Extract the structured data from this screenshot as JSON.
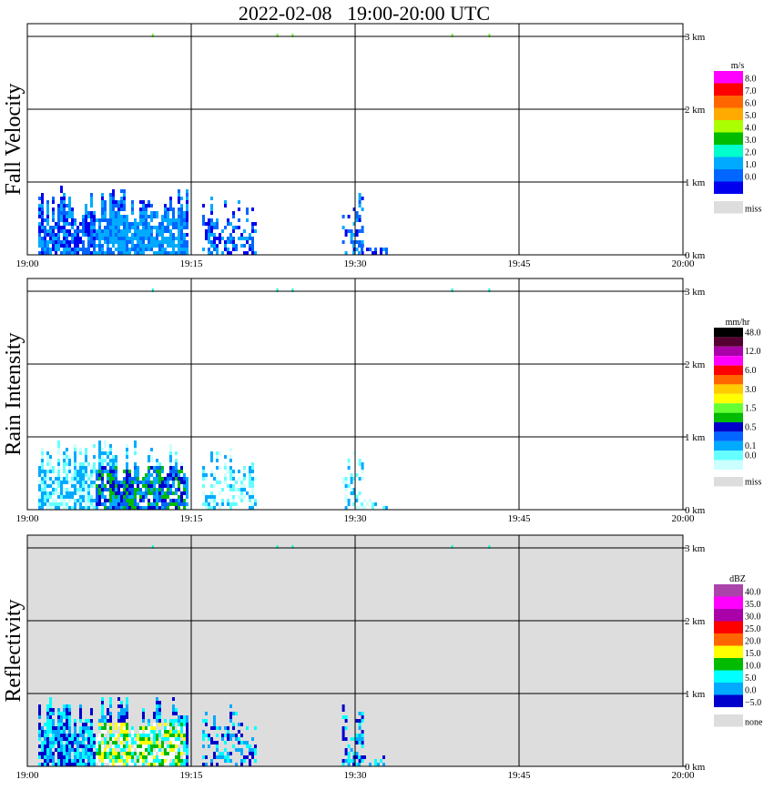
{
  "title": "2022-02-08   19:00-20:00 UTC",
  "chart_data": [
    {
      "type": "heatmap",
      "title": "Fall Velocity",
      "ylabel": "Fall Velocity",
      "x_ticks": [
        "19:00",
        "19:15",
        "19:30",
        "19:45",
        "20:00"
      ],
      "y_ticks": [
        "0 km",
        "1 km",
        "2 km",
        "3 km"
      ],
      "xlim": [
        "19:00",
        "20:00"
      ],
      "ylim_km": [
        0,
        3.2
      ],
      "grid": true,
      "legend": {
        "unit": "m/s",
        "entries": [
          {
            "label": "8.0",
            "color": "#ff00ff"
          },
          {
            "label": "7.0",
            "color": "#ff0000"
          },
          {
            "label": "6.0",
            "color": "#ff6600"
          },
          {
            "label": "5.0",
            "color": "#ffaa00"
          },
          {
            "label": "4.0",
            "color": "#aaff00"
          },
          {
            "label": "3.0",
            "color": "#00bb00"
          },
          {
            "label": "2.0",
            "color": "#00ffcc"
          },
          {
            "label": "1.0",
            "color": "#00aaff"
          },
          {
            "label": "0.0",
            "color": "#0066ff"
          },
          {
            "label": "",
            "color": "#0000ee"
          },
          {
            "label": "miss",
            "color": "#dddddd"
          }
        ]
      },
      "background": "#ffffff"
    },
    {
      "type": "heatmap",
      "title": "Rain Intensity",
      "ylabel": "Rain Intensity",
      "x_ticks": [
        "19:00",
        "19:15",
        "19:30",
        "19:45",
        "20:00"
      ],
      "y_ticks": [
        "0 km",
        "1 km",
        "2 km",
        "3 km"
      ],
      "xlim": [
        "19:00",
        "20:00"
      ],
      "ylim_km": [
        0,
        3.2
      ],
      "grid": true,
      "legend": {
        "unit": "mm/hr",
        "entries": [
          {
            "label": "48.0",
            "color": "#000000"
          },
          {
            "label": "",
            "color": "#550033"
          },
          {
            "label": "12.0",
            "color": "#aa00aa"
          },
          {
            "label": "",
            "color": "#ff00ff"
          },
          {
            "label": "6.0",
            "color": "#ff0000"
          },
          {
            "label": "",
            "color": "#ff6600"
          },
          {
            "label": "3.0",
            "color": "#ffcc00"
          },
          {
            "label": "",
            "color": "#ffff00"
          },
          {
            "label": "1.5",
            "color": "#66ff33"
          },
          {
            "label": "",
            "color": "#00bb00"
          },
          {
            "label": "0.5",
            "color": "#0000cc"
          },
          {
            "label": "",
            "color": "#0066ff"
          },
          {
            "label": "0.1",
            "color": "#00aaff"
          },
          {
            "label": "0.0",
            "color": "#66ffff"
          },
          {
            "label": "",
            "color": "#ccffff"
          },
          {
            "label": "miss",
            "color": "#dddddd"
          }
        ]
      },
      "background": "#ffffff"
    },
    {
      "type": "heatmap",
      "title": "Reflectivity",
      "ylabel": "Reflectivity",
      "x_ticks": [
        "19:00",
        "19:15",
        "19:30",
        "19:45",
        "20:00"
      ],
      "y_ticks": [
        "0 km",
        "1 km",
        "2 km",
        "3 km"
      ],
      "xlim": [
        "19:00",
        "20:00"
      ],
      "ylim_km": [
        0,
        3.2
      ],
      "grid": true,
      "legend": {
        "unit": "dBZ",
        "entries": [
          {
            "label": "40.0",
            "color": "#aa44aa"
          },
          {
            "label": "35.0",
            "color": "#ff00ff"
          },
          {
            "label": "30.0",
            "color": "#aa00aa"
          },
          {
            "label": "25.0",
            "color": "#ff0000"
          },
          {
            "label": "20.0",
            "color": "#ff6600"
          },
          {
            "label": "15.0",
            "color": "#ffff00"
          },
          {
            "label": "10.0",
            "color": "#00bb00"
          },
          {
            "label": "5.0",
            "color": "#00ffff"
          },
          {
            "label": "0.0",
            "color": "#00aaff"
          },
          {
            "label": "−5.0",
            "color": "#0000cc"
          },
          {
            "label": "none",
            "color": "#dddddd"
          }
        ]
      },
      "background": "#dddddd"
    }
  ]
}
